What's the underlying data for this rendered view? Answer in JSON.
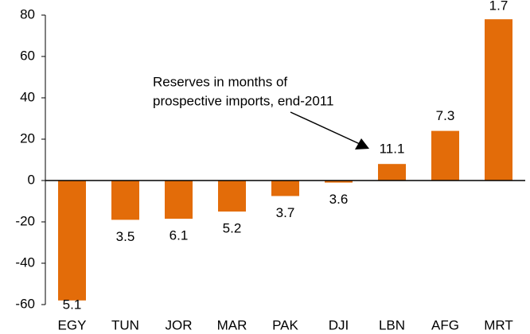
{
  "chart_data": {
    "type": "bar",
    "categories": [
      "EGY",
      "TUN",
      "JOR",
      "MAR",
      "PAK",
      "DJI",
      "LBN",
      "AFG",
      "MRT"
    ],
    "values": [
      -58,
      -19,
      -18.5,
      -15,
      -7.5,
      -1,
      8,
      24,
      78
    ],
    "bar_labels": [
      "5.1",
      "3.5",
      "6.1",
      "5.2",
      "3.7",
      "3.6",
      "11.1",
      "7.3",
      "1.7"
    ],
    "color": "#e36c09",
    "ylim": [
      -60,
      80
    ],
    "yticks": [
      -60,
      -40,
      -20,
      0,
      20,
      40,
      60,
      80
    ],
    "annotation": [
      "Reserves in months of",
      "prospective imports, end-2011"
    ]
  }
}
